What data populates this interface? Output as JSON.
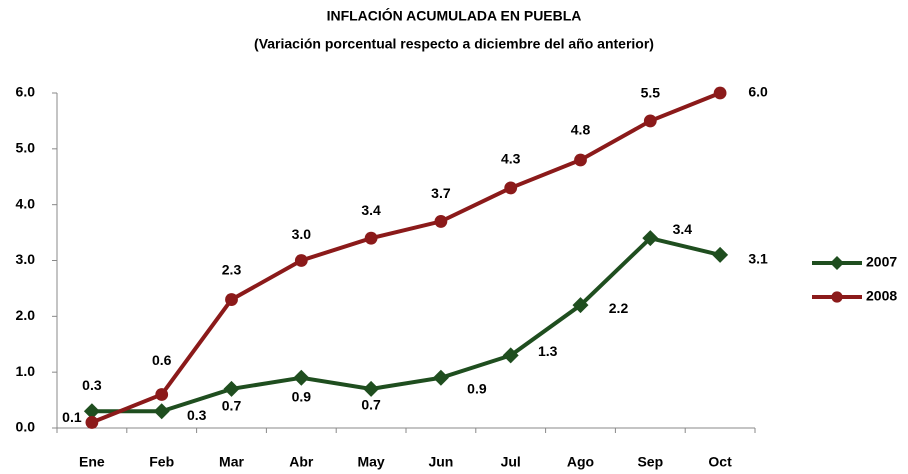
{
  "chart_data": {
    "type": "line",
    "title": "INFLACIÓN ACUMULADA EN PUEBLA",
    "subtitle": "(Variación porcentual respecto a diciembre del año anterior)",
    "categories": [
      "Ene",
      "Feb",
      "Mar",
      "Abr",
      "May",
      "Jun",
      "Jul",
      "Ago",
      "Sep",
      "Oct"
    ],
    "series": [
      {
        "name": "2007",
        "color": "#1f4e1f",
        "marker": "diamond",
        "values": [
          0.3,
          0.3,
          0.7,
          0.9,
          0.7,
          0.9,
          1.3,
          2.2,
          3.4,
          3.1
        ],
        "value_labels": [
          "0.3",
          "0.3",
          "0.7",
          "0.9",
          "0.7",
          "0.9",
          "1.3",
          "2.2",
          "3.4",
          "3.1"
        ]
      },
      {
        "name": "2008",
        "color": "#8b1a1a",
        "marker": "circle",
        "values": [
          0.1,
          0.6,
          2.3,
          3.0,
          3.4,
          3.7,
          4.3,
          4.8,
          5.5,
          6.0
        ],
        "value_labels": [
          "0.1",
          "0.6",
          "2.3",
          "3.0",
          "3.4",
          "3.7",
          "4.3",
          "4.8",
          "5.5",
          "6.0"
        ]
      }
    ],
    "ylim": [
      0,
      6
    ],
    "yticks": [
      {
        "value": 0,
        "label": "0.0"
      },
      {
        "value": 1,
        "label": "1.0"
      },
      {
        "value": 2,
        "label": "2.0"
      },
      {
        "value": 3,
        "label": "3.0"
      },
      {
        "value": 4,
        "label": "4.0"
      },
      {
        "value": 5,
        "label": "5.0"
      },
      {
        "value": 6,
        "label": "6.0"
      }
    ],
    "grid": false,
    "legend": "right"
  }
}
